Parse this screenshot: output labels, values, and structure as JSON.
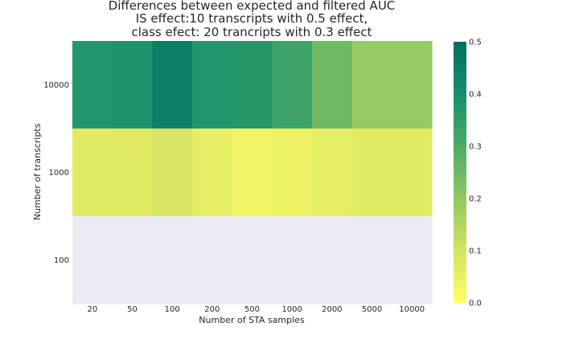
{
  "chart_data": {
    "type": "heatmap",
    "title_lines": [
      "Differences between expected and filtered AUC",
      "IS effect:10 transcripts with 0.5 effect,",
      "class efect: 20 trancripts with 0.3 effect"
    ],
    "xlabel": "Number of STA samples",
    "ylabel": "Number of transcripts",
    "x_categories": [
      "20",
      "50",
      "100",
      "200",
      "500",
      "1000",
      "2000",
      "5000",
      "10000"
    ],
    "y_categories": [
      "10000",
      "1000",
      "100"
    ],
    "values": [
      [
        0.38,
        0.39,
        0.45,
        0.38,
        0.37,
        0.33,
        0.25,
        0.19,
        0.19
      ],
      [
        0.07,
        0.07,
        0.09,
        0.06,
        0.03,
        0.04,
        0.06,
        0.07,
        0.07
      ],
      [
        null,
        null,
        null,
        null,
        null,
        null,
        null,
        null,
        null
      ]
    ],
    "missing_color": "#eaeaf2",
    "colormap": [
      "#ffff66",
      "#d3e262",
      "#8fc863",
      "#4dab64",
      "#178f6d",
      "#007060"
    ],
    "vmin": 0.0,
    "vmax": 0.5,
    "colorbar_ticks": [
      "0.0",
      "0.1",
      "0.2",
      "0.3",
      "0.4",
      "0.5"
    ],
    "grid": false
  }
}
